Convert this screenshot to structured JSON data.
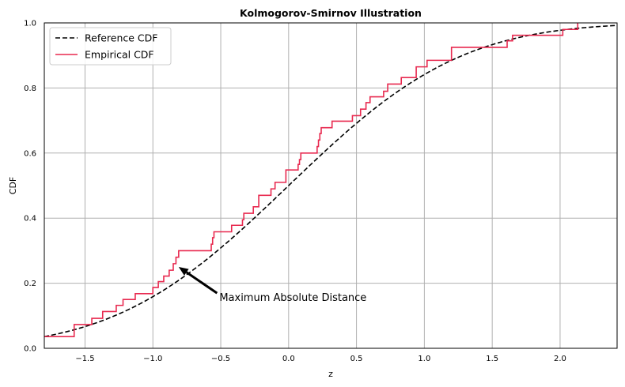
{
  "chart_data": {
    "type": "line",
    "title": "Kolmogorov-Smirnov Illustration",
    "xlabel": "z",
    "ylabel": "CDF",
    "xlim": [
      -1.8,
      2.42
    ],
    "ylim": [
      0.0,
      1.0
    ],
    "xticks": [
      -1.5,
      -1.0,
      -0.5,
      0.0,
      0.5,
      1.0,
      1.5,
      2.0
    ],
    "xtick_labels": [
      "−1.5",
      "−1.0",
      "−0.5",
      "0.0",
      "0.5",
      "1.0",
      "1.5",
      "2.0"
    ],
    "yticks": [
      0.0,
      0.2,
      0.4,
      0.6,
      0.8,
      1.0
    ],
    "ytick_labels": [
      "0.0",
      "0.2",
      "0.4",
      "0.6",
      "0.8",
      "1.0"
    ],
    "grid": true,
    "legend_position": "top-left",
    "series": [
      {
        "name": "Reference CDF",
        "kind": "normal-cdf",
        "color": "#000000",
        "style": "dashed"
      },
      {
        "name": "Empirical CDF",
        "kind": "step",
        "color": "#e8294f",
        "style": "solid",
        "x": [
          -1.8,
          -1.58,
          -1.45,
          -1.37,
          -1.27,
          -1.22,
          -1.13,
          -1.0,
          -0.96,
          -0.92,
          -0.88,
          -0.85,
          -0.83,
          -0.81,
          -0.57,
          -0.56,
          -0.55,
          -0.42,
          -0.34,
          -0.33,
          -0.32,
          -0.26,
          -0.22,
          -0.13,
          -0.1,
          -0.02,
          0.07,
          0.08,
          0.09,
          0.1,
          0.21,
          0.22,
          0.23,
          0.24,
          0.26,
          0.32,
          0.47,
          0.53,
          0.57,
          0.58,
          0.6,
          0.7,
          0.73,
          0.83,
          0.94,
          1.02,
          1.2,
          1.61,
          1.65,
          2.02,
          2.13
        ],
        "y": [
          0.036,
          0.073,
          0.092,
          0.113,
          0.132,
          0.15,
          0.168,
          0.187,
          0.205,
          0.222,
          0.24,
          0.26,
          0.28,
          0.3,
          0.32,
          0.34,
          0.358,
          0.378,
          0.395,
          0.415,
          0.415,
          0.435,
          0.47,
          0.49,
          0.51,
          0.548,
          0.565,
          0.58,
          0.6,
          0.6,
          0.62,
          0.64,
          0.66,
          0.678,
          0.678,
          0.698,
          0.715,
          0.735,
          0.755,
          0.755,
          0.773,
          0.79,
          0.812,
          0.832,
          0.865,
          0.885,
          0.925,
          0.945,
          0.962,
          0.98,
          1.0
        ]
      }
    ],
    "annotation": {
      "text": "Maximum Absolute Distance",
      "text_x": -0.51,
      "text_y": 0.155,
      "arrow_to_x": -0.81,
      "arrow_to_y": 0.25
    }
  }
}
